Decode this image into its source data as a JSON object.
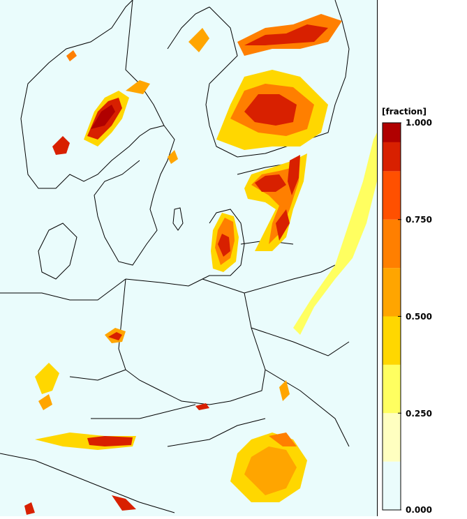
{
  "legend": {
    "title": "[fraction]",
    "tick_labels": [
      "1.000",
      "0.750",
      "0.500",
      "0.250",
      "0.000"
    ],
    "tick_values": [
      1.0,
      0.75,
      0.5,
      0.25,
      0.0
    ],
    "bins": [
      {
        "min": 0.0,
        "max": 0.125,
        "color": "#eafcfc"
      },
      {
        "min": 0.125,
        "max": 0.25,
        "color": "#ffffc0"
      },
      {
        "min": 0.25,
        "max": 0.375,
        "color": "#ffff60"
      },
      {
        "min": 0.375,
        "max": 0.5,
        "color": "#ffd700"
      },
      {
        "min": 0.5,
        "max": 0.625,
        "color": "#ffa500"
      },
      {
        "min": 0.625,
        "max": 0.75,
        "color": "#ff7f00"
      },
      {
        "min": 0.75,
        "max": 0.875,
        "color": "#ff5000"
      },
      {
        "min": 0.875,
        "max": 1.0,
        "color": "#d82000"
      },
      {
        "min": 0.95,
        "max": 1.0,
        "color": "#b00000"
      }
    ]
  },
  "colors": {
    "ocean_land_background": "#eafcfc",
    "contour": "#00aacc",
    "border": "#000000"
  }
}
